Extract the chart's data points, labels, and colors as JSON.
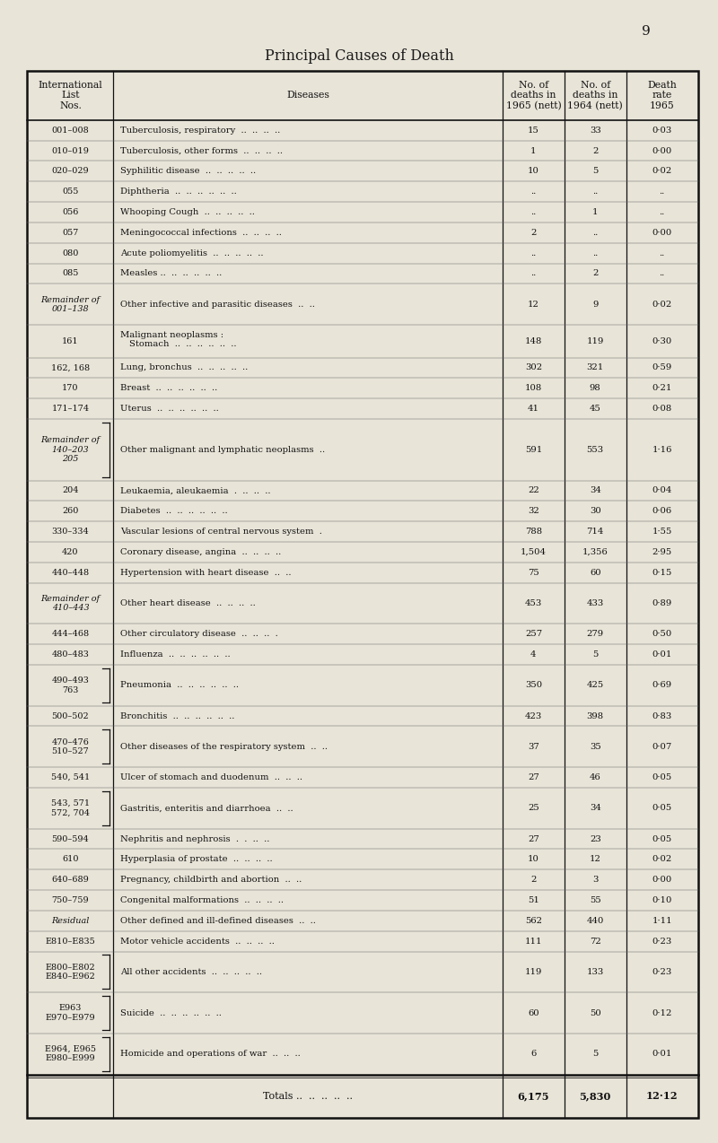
{
  "title": "Principal Causes of Death",
  "page_number": "9",
  "bg_color": "#e8e4d8",
  "rows": [
    {
      "nos": "001–008",
      "disease": "Tuberculosis, respiratory  ..  ..  ..  ..",
      "d1965": "15",
      "d1964": "33",
      "rate": "0·03",
      "bracket": false,
      "neoplasm_header": false
    },
    {
      "nos": "010–019",
      "disease": "Tuberculosis, other forms  ..  ..  ..  ..",
      "d1965": "1",
      "d1964": "2",
      "rate": "0·00",
      "bracket": false,
      "neoplasm_header": false
    },
    {
      "nos": "020–029",
      "disease": "Syphilitic disease  ..  ..  ..  ..  ..",
      "d1965": "10",
      "d1964": "5",
      "rate": "0·02",
      "bracket": false,
      "neoplasm_header": false
    },
    {
      "nos": "055",
      "disease": "Diphtheria  ..  ..  ..  ..  ..  ..",
      "d1965": "..",
      "d1964": "..",
      "rate": "..",
      "bracket": false,
      "neoplasm_header": false
    },
    {
      "nos": "056",
      "disease": "Whooping Cough  ..  ..  ..  ..  ..",
      "d1965": "..",
      "d1964": "1",
      "rate": "..",
      "bracket": false,
      "neoplasm_header": false
    },
    {
      "nos": "057",
      "disease": "Meningococcal infections  ..  ..  ..  ..",
      "d1965": "2",
      "d1964": "..",
      "rate": "0·00",
      "bracket": false,
      "neoplasm_header": false
    },
    {
      "nos": "080",
      "disease": "Acute poliomyelitis  ..  ..  ..  ..  ..",
      "d1965": "..",
      "d1964": "..",
      "rate": "..",
      "bracket": false,
      "neoplasm_header": false
    },
    {
      "nos": "085",
      "disease": "Measles ..  ..  ..  ..  ..  ..",
      "d1965": "..",
      "d1964": "2",
      "rate": "..",
      "bracket": false,
      "neoplasm_header": false
    },
    {
      "nos": "Remainder of\n001–138",
      "disease": "Other infective and parasitic diseases  ..  ..",
      "d1965": "12",
      "d1964": "9",
      "rate": "0·02",
      "bracket": false,
      "neoplasm_header": false
    },
    {
      "nos": "161",
      "disease": "Stomach  ..  ..  ..  ..  ..  ..",
      "d1965": "148",
      "d1964": "119",
      "rate": "0·30",
      "bracket": false,
      "neoplasm_header": true
    },
    {
      "nos": "162, 168",
      "disease": "Lung, bronchus  ..  ..  ..  ..  ..",
      "d1965": "302",
      "d1964": "321",
      "rate": "0·59",
      "bracket": false,
      "neoplasm_header": false
    },
    {
      "nos": "170",
      "disease": "Breast  ..  ..  ..  ..  ..  ..",
      "d1965": "108",
      "d1964": "98",
      "rate": "0·21",
      "bracket": false,
      "neoplasm_header": false
    },
    {
      "nos": "171–174",
      "disease": "Uterus  ..  ..  ..  ..  ..  ..",
      "d1965": "41",
      "d1964": "45",
      "rate": "0·08",
      "bracket": false,
      "neoplasm_header": false
    },
    {
      "nos": "Remainder of\n140–203\n205",
      "disease": "Other malignant and lymphatic neoplasms  ..",
      "d1965": "591",
      "d1964": "553",
      "rate": "1·16",
      "bracket": true,
      "neoplasm_header": false
    },
    {
      "nos": "204",
      "disease": "Leukaemia, aleukaemia  .  ..  ..  ..",
      "d1965": "22",
      "d1964": "34",
      "rate": "0·04",
      "bracket": false,
      "neoplasm_header": false
    },
    {
      "nos": "260",
      "disease": "Diabetes  ..  ..  ..  ..  ..  ..",
      "d1965": "32",
      "d1964": "30",
      "rate": "0·06",
      "bracket": false,
      "neoplasm_header": false
    },
    {
      "nos": "330–334",
      "disease": "Vascular lesions of central nervous system  .",
      "d1965": "788",
      "d1964": "714",
      "rate": "1·55",
      "bracket": false,
      "neoplasm_header": false
    },
    {
      "nos": "420",
      "disease": "Coronary disease, angina  ..  ..  ..  ..",
      "d1965": "1,504",
      "d1964": "1,356",
      "rate": "2·95",
      "bracket": false,
      "neoplasm_header": false
    },
    {
      "nos": "440–448",
      "disease": "Hypertension with heart disease  ..  ..",
      "d1965": "75",
      "d1964": "60",
      "rate": "0·15",
      "bracket": false,
      "neoplasm_header": false
    },
    {
      "nos": "Remainder of\n410–443",
      "disease": "Other heart disease  ..  ..  ..  ..",
      "d1965": "453",
      "d1964": "433",
      "rate": "0·89",
      "bracket": false,
      "neoplasm_header": false
    },
    {
      "nos": "444–468",
      "disease": "Other circulatory disease  ..  ..  ..  .",
      "d1965": "257",
      "d1964": "279",
      "rate": "0·50",
      "bracket": false,
      "neoplasm_header": false
    },
    {
      "nos": "480–483",
      "disease": "Influenza  ..  ..  ..  ..  ..  ..",
      "d1965": "4",
      "d1964": "5",
      "rate": "0·01",
      "bracket": false,
      "neoplasm_header": false
    },
    {
      "nos": "490–493\n763",
      "disease": "Pneumonia  ..  ..  ..  ..  ..  ..",
      "d1965": "350",
      "d1964": "425",
      "rate": "0·69",
      "bracket": true,
      "neoplasm_header": false
    },
    {
      "nos": "500–502",
      "disease": "Bronchitis  ..  ..  ..  ..  ..  ..",
      "d1965": "423",
      "d1964": "398",
      "rate": "0·83",
      "bracket": false,
      "neoplasm_header": false
    },
    {
      "nos": "470–476\n510–527",
      "disease": "Other diseases of the respiratory system  ..  ..",
      "d1965": "37",
      "d1964": "35",
      "rate": "0·07",
      "bracket": true,
      "neoplasm_header": false
    },
    {
      "nos": "540, 541",
      "disease": "Ulcer of stomach and duodenum  ..  ..  ..",
      "d1965": "27",
      "d1964": "46",
      "rate": "0·05",
      "bracket": false,
      "neoplasm_header": false
    },
    {
      "nos": "543, 571\n572, 704",
      "disease": "Gastritis, enteritis and diarrhoea  ..  ..",
      "d1965": "25",
      "d1964": "34",
      "rate": "0·05",
      "bracket": true,
      "neoplasm_header": false
    },
    {
      "nos": "590–594",
      "disease": "Nephritis and nephrosis  .  .  ..  ..",
      "d1965": "27",
      "d1964": "23",
      "rate": "0·05",
      "bracket": false,
      "neoplasm_header": false
    },
    {
      "nos": "610",
      "disease": "Hyperplasia of prostate  ..  ..  ..  ..",
      "d1965": "10",
      "d1964": "12",
      "rate": "0·02",
      "bracket": false,
      "neoplasm_header": false
    },
    {
      "nos": "640–689",
      "disease": "Pregnancy, childbirth and abortion  ..  ..",
      "d1965": "2",
      "d1964": "3",
      "rate": "0·00",
      "bracket": false,
      "neoplasm_header": false
    },
    {
      "nos": "750–759",
      "disease": "Congenital malformations  ..  ..  ..  ..",
      "d1965": "51",
      "d1964": "55",
      "rate": "0·10",
      "bracket": false,
      "neoplasm_header": false
    },
    {
      "nos": "Residual",
      "disease": "Other defined and ill-defined diseases  ..  ..",
      "d1965": "562",
      "d1964": "440",
      "rate": "1·11",
      "bracket": false,
      "neoplasm_header": false
    },
    {
      "nos": "E810–E835",
      "disease": "Motor vehicle accidents  ..  ..  ..  ..",
      "d1965": "111",
      "d1964": "72",
      "rate": "0·23",
      "bracket": false,
      "neoplasm_header": false
    },
    {
      "nos": "E800–E802\nE840–E962",
      "disease": "All other accidents  ..  ..  ..  ..  ..",
      "d1965": "119",
      "d1964": "133",
      "rate": "0·23",
      "bracket": true,
      "neoplasm_header": false
    },
    {
      "nos": "E963\nE970–E979",
      "disease": "Suicide  ..  ..  ..  ..  ..  ..",
      "d1965": "60",
      "d1964": "50",
      "rate": "0·12",
      "bracket": true,
      "neoplasm_header": false
    },
    {
      "nos": "E964, E965\nE980–E999",
      "disease": "Homicide and operations of war  ..  ..  ..",
      "d1965": "6",
      "d1964": "5",
      "rate": "0·01",
      "bracket": true,
      "neoplasm_header": false
    }
  ],
  "totals": {
    "d1965": "6,175",
    "d1964": "5,830",
    "rate": "12·12"
  }
}
